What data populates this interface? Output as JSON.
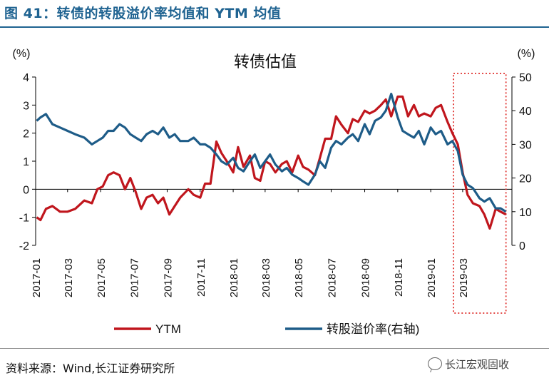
{
  "figure": {
    "title": "图 41：转债的转股溢价率均值和 YTM 均值",
    "source": "资料来源：Wind,长江证券研究所",
    "watermark": "长江宏观固收"
  },
  "chart_data": {
    "type": "line",
    "title": "转债估值",
    "left_unit": "(%)",
    "right_unit": "(%)",
    "left_ylim": [
      -2,
      4
    ],
    "right_ylim": [
      0,
      50
    ],
    "left_ticks": [
      -2,
      -1,
      0,
      1,
      2,
      3,
      4
    ],
    "right_ticks": [
      0,
      10,
      20,
      30,
      40,
      50
    ],
    "x_ticks": [
      "2017-01",
      "2017-03",
      "2017-05",
      "2017-07",
      "2017-09",
      "2017-11",
      "2018-01",
      "2018-03",
      "2018-05",
      "2018-07",
      "2018-09",
      "2018-11",
      "2019-01",
      "2019-03"
    ],
    "grid": false,
    "legend_position": "bottom",
    "highlight": {
      "from": "2019-02-12",
      "to": "2019-05-20",
      "style": "red-dotted-box"
    },
    "series": [
      {
        "name": "YTM",
        "axis": "left",
        "color": "#c0161d",
        "x": [
          "2017-01-03",
          "2017-01-10",
          "2017-01-20",
          "2017-02-01",
          "2017-02-15",
          "2017-03-01",
          "2017-03-15",
          "2017-04-01",
          "2017-04-15",
          "2017-04-25",
          "2017-05-05",
          "2017-05-15",
          "2017-05-25",
          "2017-06-05",
          "2017-06-15",
          "2017-06-25",
          "2017-07-05",
          "2017-07-15",
          "2017-07-25",
          "2017-08-05",
          "2017-08-15",
          "2017-08-25",
          "2017-09-05",
          "2017-09-15",
          "2017-09-25",
          "2017-10-10",
          "2017-10-20",
          "2017-11-01",
          "2017-11-10",
          "2017-11-20",
          "2017-12-01",
          "2017-12-10",
          "2017-12-20",
          "2018-01-01",
          "2018-01-10",
          "2018-01-20",
          "2018-02-01",
          "2018-02-10",
          "2018-02-20",
          "2018-03-01",
          "2018-03-10",
          "2018-03-20",
          "2018-04-01",
          "2018-04-10",
          "2018-04-20",
          "2018-05-01",
          "2018-05-10",
          "2018-05-20",
          "2018-06-01",
          "2018-06-10",
          "2018-06-20",
          "2018-07-01",
          "2018-07-10",
          "2018-07-20",
          "2018-08-01",
          "2018-08-10",
          "2018-08-20",
          "2018-09-01",
          "2018-09-10",
          "2018-09-20",
          "2018-10-01",
          "2018-10-10",
          "2018-10-20",
          "2018-11-01",
          "2018-11-10",
          "2018-11-20",
          "2018-12-01",
          "2018-12-10",
          "2018-12-20",
          "2019-01-01",
          "2019-01-10",
          "2019-01-20",
          "2019-02-01",
          "2019-02-10",
          "2019-02-20",
          "2019-03-01",
          "2019-03-10",
          "2019-03-20",
          "2019-04-01",
          "2019-04-10",
          "2019-04-20",
          "2019-05-01",
          "2019-05-10",
          "2019-05-20"
        ],
        "values": [
          -1.0,
          -1.1,
          -0.7,
          -0.6,
          -0.8,
          -0.8,
          -0.7,
          -0.4,
          -0.5,
          0.0,
          0.1,
          0.5,
          0.6,
          0.5,
          0.0,
          0.4,
          -0.1,
          -0.7,
          -0.3,
          -0.2,
          -0.5,
          -0.3,
          -0.9,
          -0.6,
          -0.3,
          0.0,
          -0.2,
          -0.3,
          0.2,
          0.2,
          1.7,
          1.3,
          1.0,
          0.6,
          1.5,
          0.8,
          1.2,
          0.4,
          0.3,
          1.0,
          0.9,
          0.6,
          0.9,
          1.0,
          0.6,
          1.2,
          0.8,
          0.7,
          0.5,
          1.1,
          1.8,
          1.8,
          2.6,
          2.3,
          2.0,
          2.5,
          2.4,
          2.8,
          2.7,
          2.8,
          3.0,
          3.2,
          2.6,
          3.3,
          3.3,
          2.6,
          3.0,
          2.6,
          2.7,
          2.6,
          2.9,
          3.0,
          2.4,
          2.0,
          1.6,
          0.6,
          -0.2,
          -0.5,
          -0.6,
          -0.9,
          -1.4,
          -0.7,
          -0.8,
          -0.9
        ]
      },
      {
        "name": "转股溢价率(右轴)",
        "axis": "right",
        "color": "#1e5c88",
        "x": [
          "2017-01-03",
          "2017-01-10",
          "2017-01-20",
          "2017-02-01",
          "2017-02-15",
          "2017-03-01",
          "2017-03-15",
          "2017-04-01",
          "2017-04-15",
          "2017-04-25",
          "2017-05-05",
          "2017-05-15",
          "2017-05-25",
          "2017-06-05",
          "2017-06-15",
          "2017-06-25",
          "2017-07-05",
          "2017-07-15",
          "2017-07-25",
          "2017-08-05",
          "2017-08-15",
          "2017-08-25",
          "2017-09-05",
          "2017-09-15",
          "2017-09-25",
          "2017-10-10",
          "2017-10-20",
          "2017-11-01",
          "2017-11-10",
          "2017-11-20",
          "2017-12-01",
          "2017-12-10",
          "2017-12-20",
          "2018-01-01",
          "2018-01-10",
          "2018-01-20",
          "2018-02-01",
          "2018-02-10",
          "2018-02-20",
          "2018-03-01",
          "2018-03-10",
          "2018-03-20",
          "2018-04-01",
          "2018-04-10",
          "2018-04-20",
          "2018-05-01",
          "2018-05-10",
          "2018-05-20",
          "2018-06-01",
          "2018-06-10",
          "2018-06-20",
          "2018-07-01",
          "2018-07-10",
          "2018-07-20",
          "2018-08-01",
          "2018-08-10",
          "2018-08-20",
          "2018-09-01",
          "2018-09-10",
          "2018-09-20",
          "2018-10-01",
          "2018-10-10",
          "2018-10-20",
          "2018-11-01",
          "2018-11-10",
          "2018-11-20",
          "2018-12-01",
          "2018-12-10",
          "2018-12-20",
          "2019-01-01",
          "2019-01-10",
          "2019-01-20",
          "2019-02-01",
          "2019-02-10",
          "2019-02-20",
          "2019-03-01",
          "2019-03-10",
          "2019-03-20",
          "2019-04-01",
          "2019-04-10",
          "2019-04-20",
          "2019-05-01",
          "2019-05-10",
          "2019-05-20"
        ],
        "values": [
          37,
          38,
          39,
          36,
          35,
          34,
          33,
          32,
          30,
          31,
          32,
          34,
          34,
          36,
          35,
          33,
          32,
          31,
          33,
          34,
          33,
          35,
          32,
          33,
          31,
          31,
          32,
          30,
          30,
          29,
          27,
          25,
          24,
          26,
          23,
          22,
          25,
          27,
          23,
          25,
          27,
          24,
          22,
          23,
          21,
          20,
          19,
          18,
          21,
          25,
          23,
          29,
          31,
          30,
          32,
          33,
          31,
          36,
          33,
          37,
          38,
          40,
          45,
          38,
          34,
          33,
          32,
          34,
          30,
          35,
          33,
          34,
          30,
          31,
          28,
          21,
          18,
          17,
          14,
          13,
          14,
          11,
          11,
          10
        ]
      }
    ]
  }
}
